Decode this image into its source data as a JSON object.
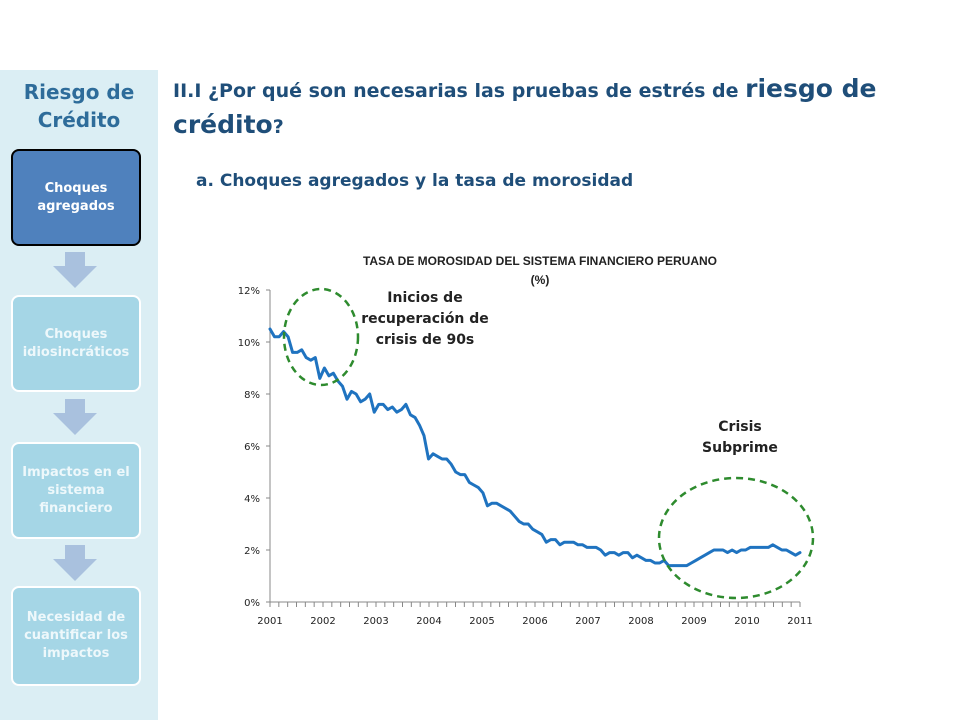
{
  "sidebar": {
    "title": "Riesgo de Crédito",
    "steps": [
      {
        "label": "Choques agregados"
      },
      {
        "label": "Choques idiosincráticos"
      },
      {
        "label": "Impactos en el sistema financiero"
      },
      {
        "label": "Necesidad de cuantificar los impactos"
      }
    ]
  },
  "header": {
    "title_part1": "II.I ¿Por qué son necesarias las pruebas de estrés de ",
    "title_emph": "riesgo de crédito",
    "title_end": "?",
    "subtitle": "a. Choques agregados y la tasa de morosidad"
  },
  "colors": {
    "line": "#1f73c0",
    "ellipse": "#2e8b2e",
    "sidebar_bg": "#dbeef4",
    "step_active": "#4f81bd",
    "step_inactive": "#a5d6e6"
  },
  "chart_data": {
    "type": "line",
    "title": "TASA DE MOROSIDAD DEL SISTEMA FINANCIERO PERUANO",
    "subtitle": "(%)",
    "xlabel": "",
    "ylabel": "",
    "ylim": [
      0,
      12
    ],
    "xlim": [
      2001,
      2011
    ],
    "y_ticks": [
      "0%",
      "2%",
      "4%",
      "6%",
      "8%",
      "10%",
      "12%"
    ],
    "x_ticks": [
      "2001",
      "2002",
      "2003",
      "2004",
      "2005",
      "2006",
      "2007",
      "2008",
      "2009",
      "2010",
      "2011"
    ],
    "grid": false,
    "legend": "none",
    "series": [
      {
        "values": [
          10.5,
          10.2,
          10.2,
          10.4,
          10.2,
          9.6,
          9.6,
          9.7,
          9.4,
          9.3,
          9.4,
          8.6,
          9.0,
          8.7,
          8.8,
          8.5,
          8.3,
          7.8,
          8.1,
          8.0,
          7.7,
          7.8,
          8.0,
          7.3,
          7.6,
          7.6,
          7.4,
          7.5,
          7.3,
          7.4,
          7.6,
          7.2,
          7.1,
          6.8,
          6.4,
          5.5,
          5.7,
          5.6,
          5.5,
          5.5,
          5.3,
          5.0,
          4.9,
          4.9,
          4.6,
          4.5,
          4.4,
          4.2,
          3.7,
          3.8,
          3.8,
          3.7,
          3.6,
          3.5,
          3.3,
          3.1,
          3.0,
          3.0,
          2.8,
          2.7,
          2.6,
          2.3,
          2.4,
          2.4,
          2.2,
          2.3,
          2.3,
          2.3,
          2.2,
          2.2,
          2.1,
          2.1,
          2.1,
          2.0,
          1.8,
          1.9,
          1.9,
          1.8,
          1.9,
          1.9,
          1.7,
          1.8,
          1.7,
          1.6,
          1.6,
          1.5,
          1.5,
          1.6,
          1.4,
          1.4,
          1.4,
          1.4,
          1.4,
          1.5,
          1.6,
          1.7,
          1.8,
          1.9,
          2.0,
          2.0,
          2.0,
          1.9,
          2.0,
          1.9,
          2.0,
          2.0,
          2.1,
          2.1,
          2.1,
          2.1,
          2.1,
          2.2,
          2.1,
          2.0,
          2.0,
          1.9,
          1.8,
          1.9
        ]
      }
    ],
    "annotations": [
      {
        "text": "Inicios de recuperación de crisis de 90s"
      },
      {
        "text": "Crisis Subprime"
      }
    ]
  }
}
